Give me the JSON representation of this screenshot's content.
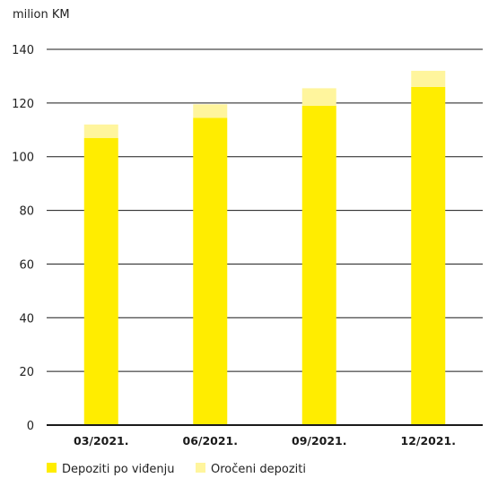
{
  "chart_data": {
    "type": "bar",
    "stacked": true,
    "unit_label": "milion KM",
    "categories": [
      "03/2021.",
      "06/2021.",
      "09/2021.",
      "12/2021."
    ],
    "series": [
      {
        "name": "Depoziti po viđenju",
        "color": "#ffed00",
        "values": [
          107,
          114.5,
          119,
          126
        ]
      },
      {
        "name": "Oročeni depoziti",
        "color": "#fff59d",
        "values": [
          5,
          5,
          6.5,
          6
        ]
      }
    ],
    "ylim": [
      0,
      140
    ],
    "yticks": [
      0,
      20,
      40,
      60,
      80,
      100,
      120,
      140
    ],
    "grid": true,
    "legend_position": "bottom-left"
  }
}
